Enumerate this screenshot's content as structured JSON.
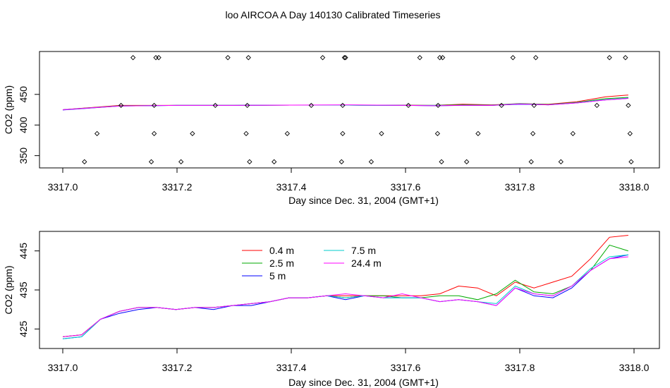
{
  "title": "loo AIRCOA A  Day 140130  Calibrated Timeseries",
  "chart_data": [
    {
      "type": "line",
      "xlabel": "Day since Dec. 31, 2004 (GMT+1)",
      "ylabel": "CO2 (ppm)",
      "xlim": [
        3317.0,
        3318.0
      ],
      "ylim": [
        330,
        520
      ],
      "x_ticks": [
        "3317.0",
        "3317.2",
        "3317.4",
        "3317.6",
        "3317.8",
        "3318.0"
      ],
      "y_ticks": [
        "350",
        "400",
        "450"
      ],
      "y_tick_values": [
        350,
        400,
        450
      ],
      "grid": false,
      "legend": "none",
      "series": [
        {
          "color": "#ff0000",
          "x": [
            3317.0,
            3317.1,
            3317.2,
            3317.3,
            3317.4,
            3317.5,
            3317.6,
            3317.65,
            3317.7,
            3317.75,
            3317.8,
            3317.85,
            3317.9,
            3317.95,
            3317.99
          ],
          "values": [
            425,
            432,
            432,
            432,
            432.5,
            432.5,
            432.5,
            432,
            434,
            433,
            434.5,
            434,
            438,
            446,
            449
          ]
        },
        {
          "color": "#00aa00",
          "x": [
            3317.0,
            3317.1,
            3317.2,
            3317.3,
            3317.4,
            3317.5,
            3317.6,
            3317.65,
            3317.7,
            3317.75,
            3317.8,
            3317.85,
            3317.9,
            3317.95,
            3317.99
          ],
          "values": [
            425,
            431.5,
            432,
            432,
            432.5,
            432.5,
            432,
            432,
            433,
            432.5,
            435,
            433.5,
            437,
            443,
            445
          ]
        },
        {
          "color": "#0000ff",
          "x": [
            3317.0,
            3317.1,
            3317.2,
            3317.3,
            3317.4,
            3317.5,
            3317.6,
            3317.65,
            3317.7,
            3317.75,
            3317.8,
            3317.85,
            3317.9,
            3317.95,
            3317.99
          ],
          "values": [
            424.5,
            431,
            432,
            432,
            432.5,
            432.5,
            432,
            431.5,
            432,
            432,
            434,
            433,
            436,
            441,
            443.5
          ]
        },
        {
          "color": "#00cccc",
          "x": [
            3317.0,
            3317.1,
            3317.2,
            3317.3,
            3317.4,
            3317.5,
            3317.6,
            3317.65,
            3317.7,
            3317.75,
            3317.8,
            3317.85,
            3317.9,
            3317.95,
            3317.99
          ],
          "values": [
            425,
            431,
            432,
            432,
            432.5,
            432.5,
            432,
            432,
            432,
            432,
            434.5,
            433,
            436.5,
            441.5,
            444
          ]
        },
        {
          "color": "#ff00ff",
          "x": [
            3317.0,
            3317.1,
            3317.2,
            3317.3,
            3317.4,
            3317.5,
            3317.6,
            3317.65,
            3317.7,
            3317.75,
            3317.8,
            3317.85,
            3317.9,
            3317.95,
            3317.99
          ],
          "values": [
            425,
            431,
            432,
            432,
            432.5,
            433,
            432,
            431.5,
            432,
            432,
            434.5,
            433,
            436,
            441,
            443.5
          ]
        }
      ],
      "markers": {
        "shape": "open-diamond",
        "x": [
          3317.038,
          3317.06,
          3317.102,
          3317.123,
          3317.155,
          3317.16,
          3317.16,
          3317.163,
          3317.168,
          3317.207,
          3317.227,
          3317.267,
          3317.289,
          3317.321,
          3317.323,
          3317.325,
          3317.327,
          3317.37,
          3317.393,
          3317.435,
          3317.455,
          3317.488,
          3317.49,
          3317.49,
          3317.493,
          3317.495,
          3317.54,
          3317.558,
          3317.605,
          3317.625,
          3317.656,
          3317.657,
          3317.66,
          3317.663,
          3317.665,
          3317.707,
          3317.727,
          3317.768,
          3317.788,
          3317.82,
          3317.823,
          3317.825,
          3317.828,
          3317.872,
          3317.893,
          3317.935,
          3317.957,
          3317.985,
          3317.99,
          3317.993,
          3317.995
        ],
        "values": [
          340,
          386,
          432,
          510,
          340,
          386,
          432,
          510,
          510,
          340,
          386,
          432,
          510,
          386,
          432,
          510,
          340,
          340,
          386,
          432,
          510,
          340,
          386,
          432,
          510,
          510,
          340,
          386,
          432,
          510,
          386,
          432,
          510,
          340,
          510,
          340,
          386,
          432,
          510,
          340,
          386,
          432,
          510,
          340,
          386,
          432,
          510,
          510,
          432,
          386,
          340
        ]
      }
    },
    {
      "type": "line",
      "xlabel": "Day since Dec. 31, 2004 (GMT+1)",
      "ylabel": "CO2 (ppm)",
      "xlim": [
        3317.0,
        3318.0
      ],
      "ylim": [
        420,
        450
      ],
      "x_ticks": [
        "3317.0",
        "3317.2",
        "3317.4",
        "3317.6",
        "3317.8",
        "3318.0"
      ],
      "y_ticks": [
        "425",
        "435",
        "445"
      ],
      "y_tick_values": [
        425,
        435,
        445
      ],
      "grid": false,
      "legend": "top-center",
      "series": [
        {
          "name": "0.4 m",
          "color": "#ff0000",
          "x": [
            3317.0,
            3317.033,
            3317.066,
            3317.099,
            3317.132,
            3317.165,
            3317.198,
            3317.231,
            3317.264,
            3317.297,
            3317.33,
            3317.363,
            3317.396,
            3317.429,
            3317.462,
            3317.495,
            3317.528,
            3317.561,
            3317.594,
            3317.627,
            3317.66,
            3317.693,
            3317.726,
            3317.759,
            3317.792,
            3317.825,
            3317.858,
            3317.891,
            3317.924,
            3317.957,
            3317.99
          ],
          "values": [
            423,
            423.5,
            427.5,
            429.5,
            430.5,
            430.5,
            430,
            430.5,
            430.5,
            431,
            431.5,
            432,
            433,
            433,
            433.5,
            433.5,
            433.5,
            433.5,
            433.5,
            433.5,
            434,
            436,
            435.5,
            433.5,
            437,
            435.5,
            437,
            438.5,
            443,
            448.5,
            449
          ]
        },
        {
          "name": "2.5 m",
          "color": "#00aa00",
          "x": [
            3317.0,
            3317.033,
            3317.066,
            3317.099,
            3317.132,
            3317.165,
            3317.198,
            3317.231,
            3317.264,
            3317.297,
            3317.33,
            3317.363,
            3317.396,
            3317.429,
            3317.462,
            3317.495,
            3317.528,
            3317.561,
            3317.594,
            3317.627,
            3317.66,
            3317.693,
            3317.726,
            3317.759,
            3317.792,
            3317.825,
            3317.858,
            3317.891,
            3317.924,
            3317.957,
            3317.99
          ],
          "values": [
            423,
            423.5,
            427.5,
            429.5,
            430.5,
            430.5,
            430,
            430.5,
            430.5,
            431,
            431.5,
            432,
            433,
            433,
            433.5,
            433,
            433.5,
            433.5,
            433,
            433,
            433.5,
            433.5,
            432.5,
            434,
            437.5,
            434.5,
            434,
            436,
            440,
            446.5,
            445
          ]
        },
        {
          "name": "5 m",
          "color": "#0000ff",
          "x": [
            3317.0,
            3317.033,
            3317.066,
            3317.099,
            3317.132,
            3317.165,
            3317.198,
            3317.231,
            3317.264,
            3317.297,
            3317.33,
            3317.363,
            3317.396,
            3317.429,
            3317.462,
            3317.495,
            3317.528,
            3317.561,
            3317.594,
            3317.627,
            3317.66,
            3317.693,
            3317.726,
            3317.759,
            3317.792,
            3317.825,
            3317.858,
            3317.891,
            3317.924,
            3317.957,
            3317.99
          ],
          "values": [
            422.5,
            423,
            427.5,
            429,
            430,
            430.5,
            430,
            430.5,
            430,
            431,
            431,
            432,
            433,
            433,
            433.5,
            432.5,
            433.5,
            433,
            433,
            433,
            432,
            432.5,
            432,
            431,
            435.5,
            433.5,
            433,
            435.5,
            440,
            443,
            444
          ]
        },
        {
          "name": "7.5 m",
          "color": "#00cccc",
          "x": [
            3317.0,
            3317.033,
            3317.066,
            3317.099,
            3317.132,
            3317.165,
            3317.198,
            3317.231,
            3317.264,
            3317.297,
            3317.33,
            3317.363,
            3317.396,
            3317.429,
            3317.462,
            3317.495,
            3317.528,
            3317.561,
            3317.594,
            3317.627,
            3317.66,
            3317.693,
            3317.726,
            3317.759,
            3317.792,
            3317.825,
            3317.858,
            3317.891,
            3317.924,
            3317.957,
            3317.99
          ],
          "values": [
            422.5,
            423,
            427.5,
            429.5,
            430.5,
            430.5,
            430,
            430.5,
            430.5,
            431,
            431.5,
            432,
            433,
            433,
            433.5,
            433,
            433.5,
            433,
            433,
            433,
            432,
            432.5,
            432,
            431.5,
            436,
            434,
            433.5,
            436,
            440.5,
            443.5,
            444
          ]
        },
        {
          "name": "24.4 m",
          "color": "#ff00ff",
          "x": [
            3317.0,
            3317.033,
            3317.066,
            3317.099,
            3317.132,
            3317.165,
            3317.198,
            3317.231,
            3317.264,
            3317.297,
            3317.33,
            3317.363,
            3317.396,
            3317.429,
            3317.462,
            3317.495,
            3317.528,
            3317.561,
            3317.594,
            3317.627,
            3317.66,
            3317.693,
            3317.726,
            3317.759,
            3317.792,
            3317.825,
            3317.858,
            3317.891,
            3317.924,
            3317.957,
            3317.99
          ],
          "values": [
            423,
            423.5,
            427.5,
            429.5,
            430.5,
            430.5,
            430,
            430.5,
            430.5,
            431,
            431.5,
            432,
            433,
            433,
            433.5,
            434,
            433.5,
            433,
            434,
            433,
            432,
            432.5,
            432,
            431,
            435.5,
            434,
            433.5,
            436,
            440,
            443,
            443.5
          ]
        }
      ]
    }
  ]
}
